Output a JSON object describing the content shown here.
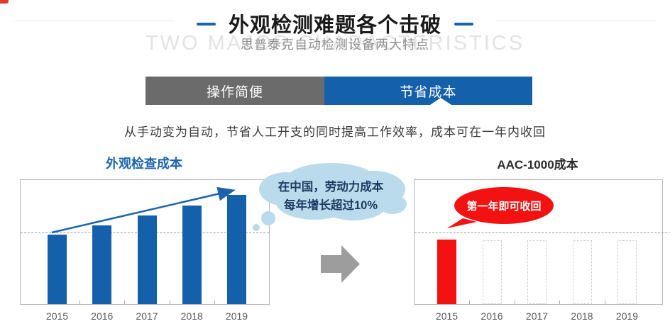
{
  "header": {
    "title": "外观检测难题各个击破",
    "subtitle": "思普泰克自动检测设备两大特点",
    "watermark": "TWO MAJOR CHARACTERISTICS"
  },
  "tabs": {
    "items": [
      {
        "label": "操作简便",
        "active": false
      },
      {
        "label": "节省成本",
        "active": true
      }
    ]
  },
  "description": "从手动变为自动，节省人工开支的同时提高工作效率，成本可在一年内收回",
  "left_callout": {
    "line1": "在中国，劳动力成本",
    "line2": "每年增长超过10%"
  },
  "right_callout": {
    "text": "第一年即可收回"
  },
  "chart_data": [
    {
      "type": "bar",
      "title": "外观检查成本",
      "categories": [
        "2015",
        "2016",
        "2017",
        "2018",
        "2019"
      ],
      "values": [
        98,
        111,
        125,
        139,
        154
      ],
      "unit": "relative cost (axis unlabeled)",
      "ylim": [
        0,
        175
      ],
      "bar_color": "#1560ab",
      "dashed_reference_line_at_value": 100,
      "trend_arrow": "rising left-to-right",
      "annotation": "在中国，劳动力成本每年增长超过10%",
      "legend": "none",
      "grid": "off"
    },
    {
      "type": "bar",
      "title": "AAC-1000成本",
      "categories": [
        "2015",
        "2016",
        "2017",
        "2018",
        "2019"
      ],
      "values": [
        91,
        0,
        0,
        0,
        0
      ],
      "placeholder_bars": {
        "categories": [
          "2016",
          "2017",
          "2018",
          "2019"
        ],
        "height": 90,
        "style": "dotted-outline"
      },
      "unit": "relative cost (axis unlabeled)",
      "ylim": [
        0,
        175
      ],
      "bar_color": "#f31111",
      "dashed_reference_line_at_value": 100,
      "annotation": "第一年即可收回",
      "legend": "none",
      "grid": "off"
    }
  ],
  "colors": {
    "accent_blue": "#1560ab",
    "accent_red": "#f31111",
    "tab_gray": "#6b6b6b",
    "cloud_fill": "#b9dbec",
    "cloud_text": "#1e3c63",
    "watermark_gray": "#e3e3e3"
  }
}
